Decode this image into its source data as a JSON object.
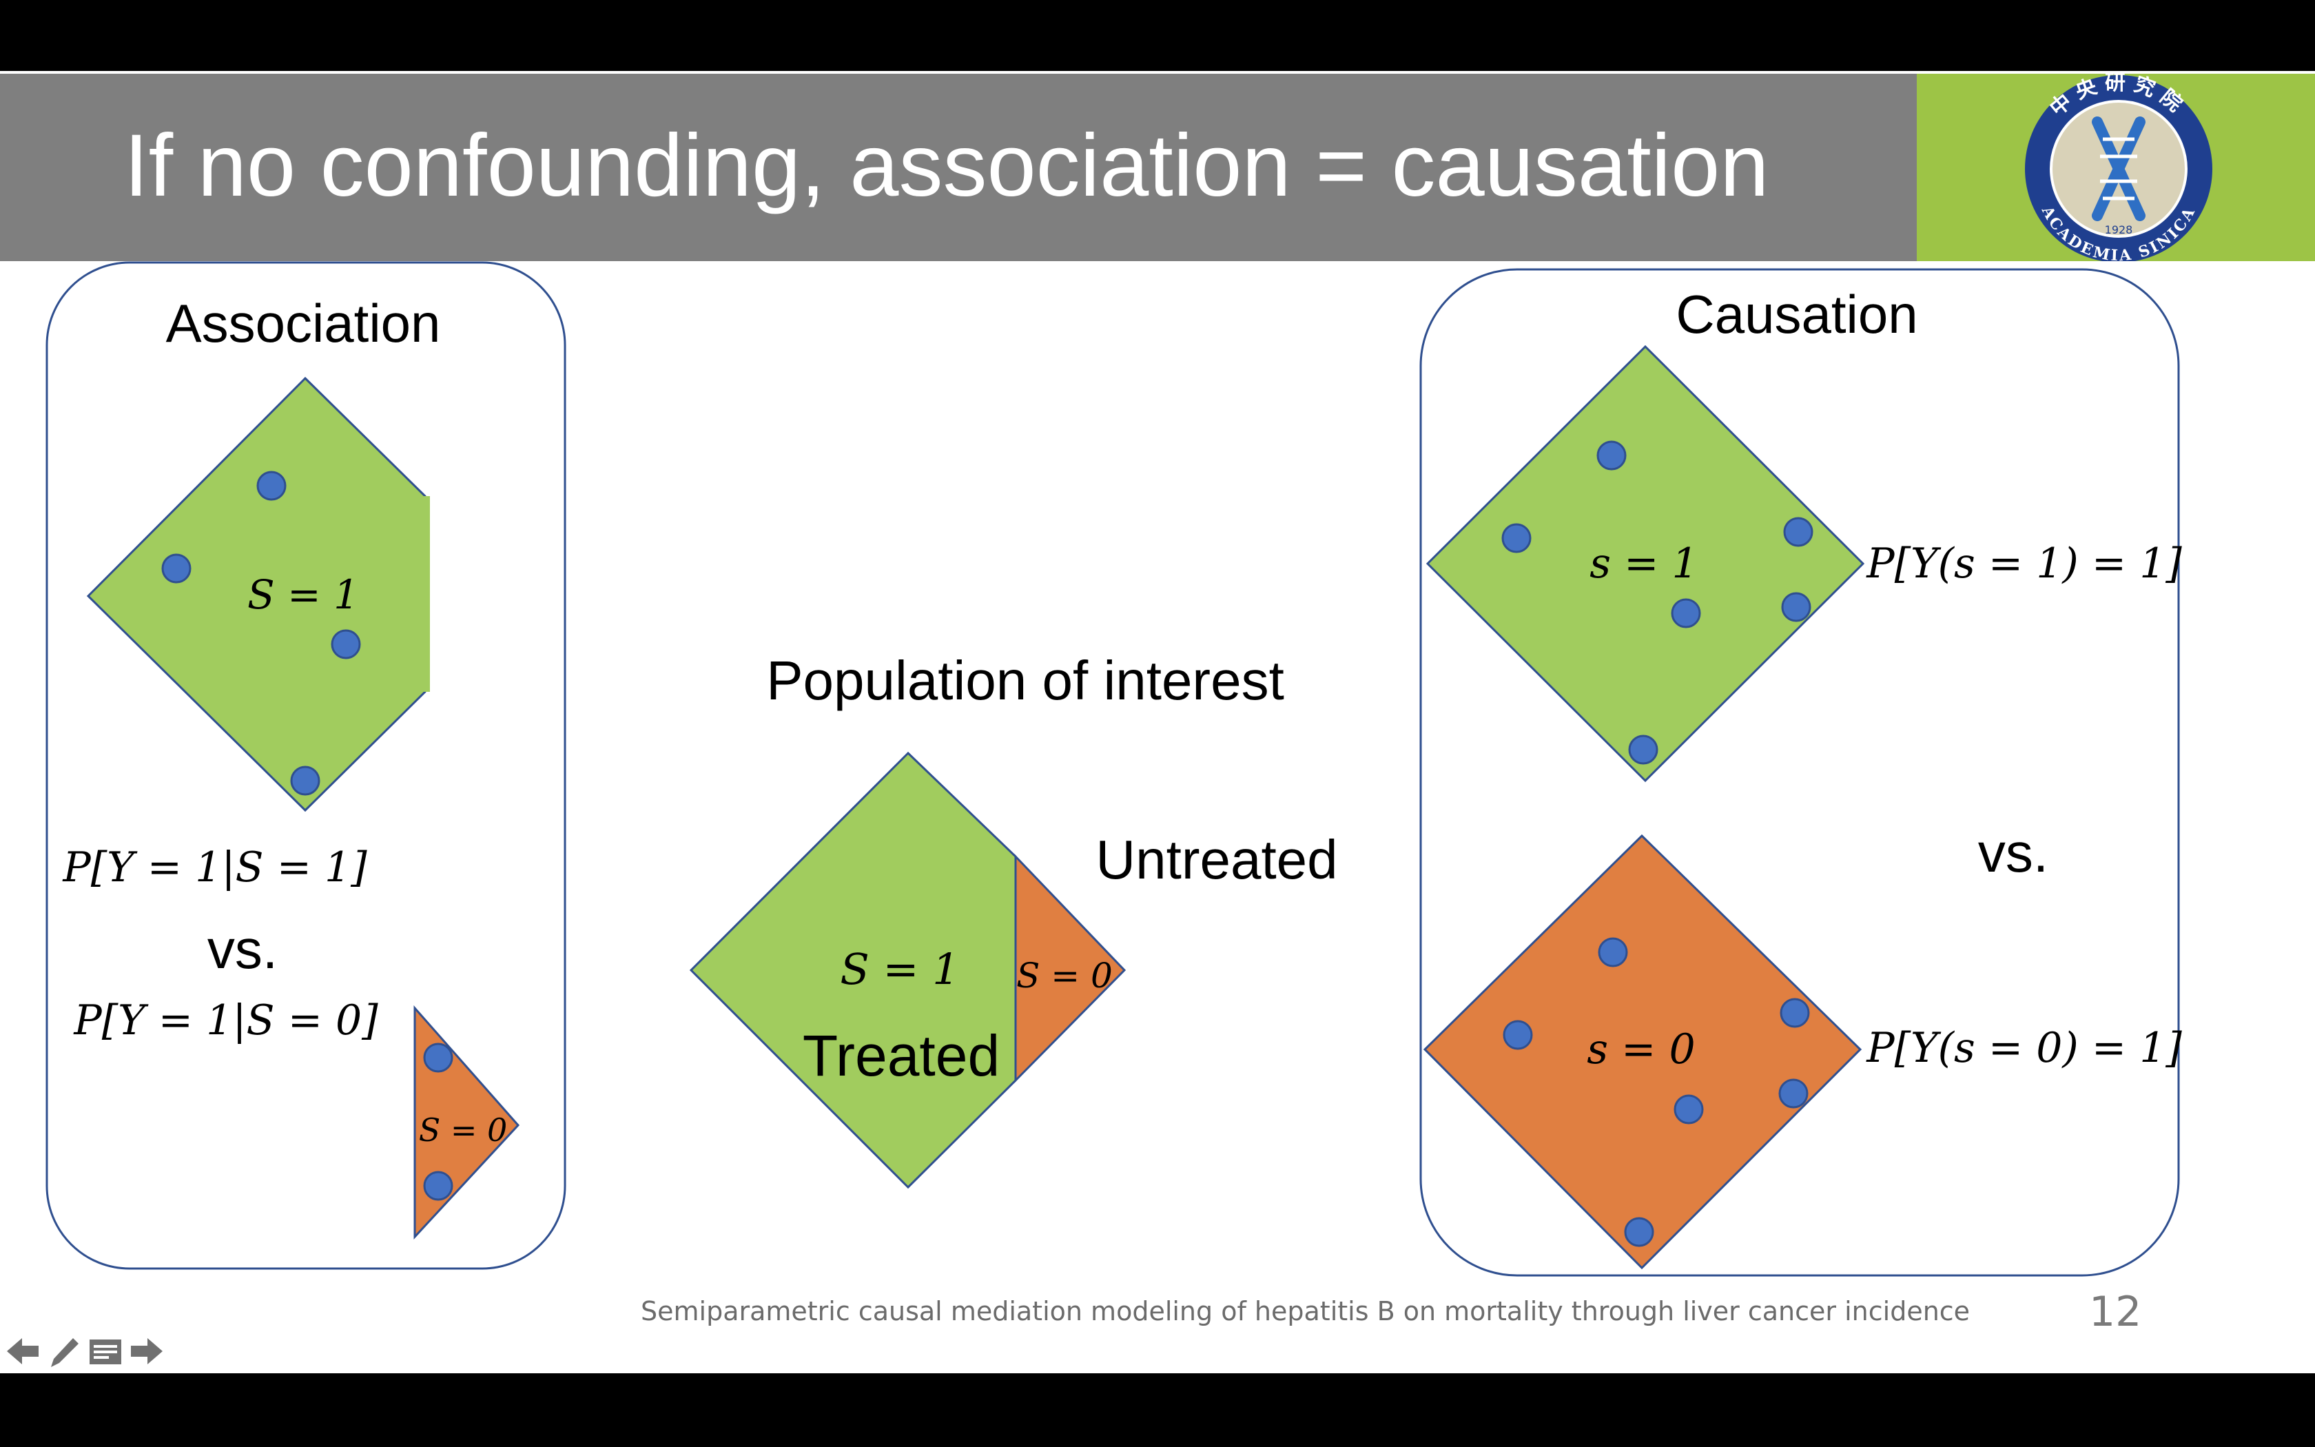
{
  "slide": {
    "title": "If no confounding, association = causation",
    "footer": "Semiparametric causal mediation modeling of hepatitis B on mortality through liver cancer incidence",
    "page_number": "12"
  },
  "logo": {
    "text_top": "中央研究院",
    "text_bottom": "ACADEMIA SINICA",
    "year": "1928"
  },
  "association": {
    "heading": "Association",
    "s1_label": "S = 1",
    "s0_label": "S = 0",
    "prob_s1": "P[Y = 1|S = 1]",
    "vs": "vs.",
    "prob_s0": "P[Y = 1|S = 0]"
  },
  "population": {
    "heading": "Population of interest",
    "s1_label": "S = 1",
    "s0_label": "S = 0",
    "treated": "Treated",
    "untreated": "Untreated"
  },
  "causation": {
    "heading": "Causation",
    "s1_label": "s = 1",
    "s0_label": "s = 0",
    "prob_s1": "P[Y(s = 1) = 1]",
    "vs": "vs.",
    "prob_s0": "P[Y(s = 0) = 1]"
  },
  "colors": {
    "green": "#a1cc5e",
    "orange": "#e07f41",
    "dot": "#4472c4",
    "outline": "#2f4f8f",
    "title_bar": "#7f7f7f",
    "logo_bg": "#9dc446"
  },
  "nav": [
    "back-arrow-icon",
    "pen-icon",
    "notes-icon",
    "forward-arrow-icon"
  ]
}
